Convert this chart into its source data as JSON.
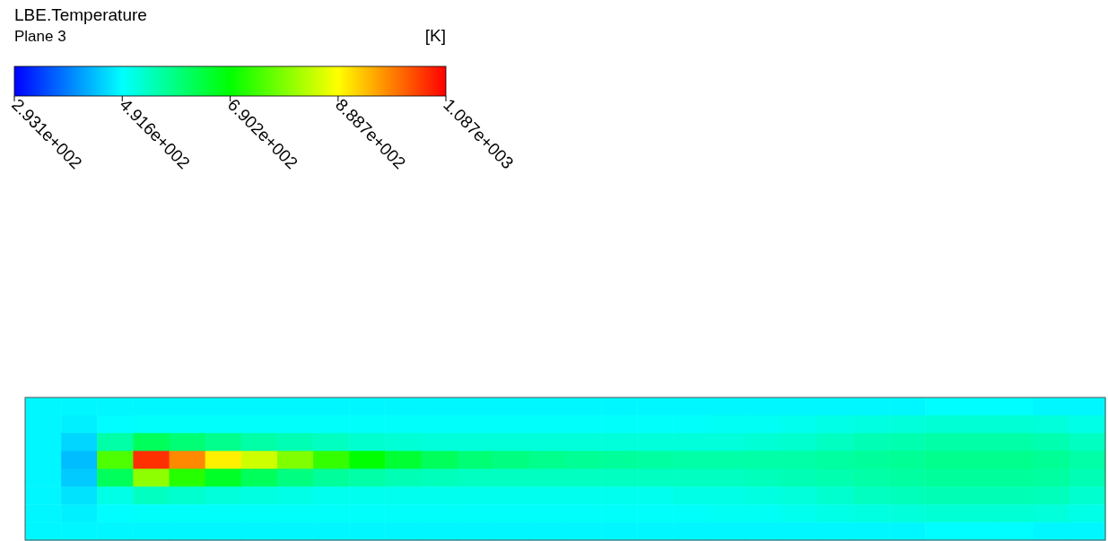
{
  "chart_data": {
    "type": "heatmap",
    "title": "LBE.Temperature",
    "subtitle": "Plane 3",
    "clabel": "[K]",
    "categories": [
      null,
      null,
      null,
      null,
      null,
      null,
      null,
      null,
      null,
      null,
      null,
      null,
      null,
      null,
      null,
      null,
      null,
      null,
      null,
      null,
      null,
      null,
      null,
      null,
      null,
      null,
      null,
      null,
      null,
      null
    ],
    "y_categories": [
      null,
      null,
      null,
      null,
      null,
      null,
      null,
      null
    ],
    "clim": [
      293.1,
      1087
    ],
    "cticks": [
      {
        "value": 293.1,
        "label": "2.931e+002"
      },
      {
        "value": 491.6,
        "label": "4.916e+002"
      },
      {
        "value": 690.2,
        "label": "6.902e+002"
      },
      {
        "value": 888.7,
        "label": "8.887e+002"
      },
      {
        "value": 1087,
        "label": "1.087e+003"
      }
    ],
    "cells": [
      [
        485,
        485,
        485,
        485,
        485,
        485,
        485,
        485,
        485,
        485,
        485,
        485,
        485,
        485,
        485,
        485,
        485,
        485,
        485,
        485,
        485,
        485,
        485,
        485,
        485,
        490,
        490,
        490,
        485,
        485
      ],
      [
        485,
        480,
        490,
        495,
        495,
        495,
        495,
        495,
        495,
        495,
        495,
        495,
        495,
        495,
        495,
        495,
        495,
        495,
        495,
        500,
        500,
        505,
        510,
        515,
        520,
        525,
        525,
        525,
        520,
        510
      ],
      [
        485,
        460,
        560,
        620,
        600,
        580,
        560,
        550,
        540,
        530,
        525,
        520,
        520,
        520,
        520,
        520,
        520,
        520,
        520,
        520,
        525,
        530,
        540,
        550,
        555,
        560,
        560,
        560,
        555,
        540
      ],
      [
        485,
        440,
        750,
        1050,
        980,
        900,
        850,
        790,
        730,
        690,
        650,
        620,
        600,
        590,
        580,
        575,
        570,
        565,
        560,
        560,
        560,
        560,
        565,
        570,
        575,
        580,
        580,
        580,
        575,
        560
      ],
      [
        485,
        450,
        620,
        800,
        720,
        660,
        620,
        590,
        570,
        560,
        550,
        545,
        540,
        540,
        540,
        540,
        540,
        540,
        540,
        540,
        545,
        550,
        555,
        560,
        565,
        570,
        570,
        570,
        565,
        550
      ],
      [
        485,
        470,
        510,
        540,
        530,
        520,
        515,
        510,
        505,
        505,
        505,
        505,
        505,
        505,
        505,
        505,
        505,
        505,
        510,
        510,
        515,
        520,
        530,
        540,
        545,
        550,
        550,
        550,
        545,
        530
      ],
      [
        485,
        480,
        490,
        495,
        495,
        495,
        495,
        495,
        495,
        495,
        495,
        495,
        495,
        495,
        495,
        495,
        495,
        495,
        495,
        500,
        500,
        505,
        510,
        515,
        520,
        525,
        525,
        525,
        520,
        510
      ],
      [
        485,
        485,
        485,
        485,
        485,
        485,
        485,
        485,
        485,
        485,
        485,
        485,
        485,
        485,
        485,
        485,
        485,
        485,
        485,
        485,
        485,
        485,
        485,
        485,
        485,
        490,
        490,
        490,
        485,
        485
      ]
    ]
  }
}
